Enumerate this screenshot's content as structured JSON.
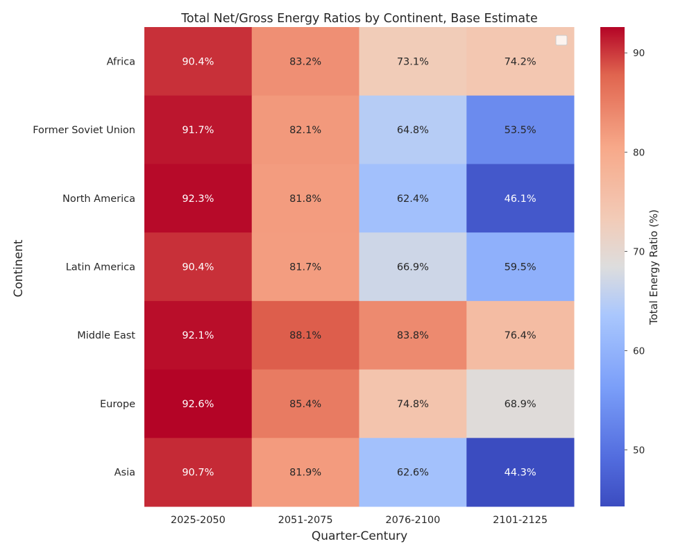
{
  "chart_data": {
    "type": "heatmap",
    "title": "Total Net/Gross Energy Ratios by Continent, Base Estimate",
    "xlabel": "Quarter-Century",
    "ylabel": "Continent",
    "x_categories": [
      "2025-2050",
      "2051-2075",
      "2076-2100",
      "2101-2125"
    ],
    "y_categories": [
      "Africa",
      "Former Soviet Union",
      "North America",
      "Latin America",
      "Middle East",
      "Europe",
      "Asia"
    ],
    "values": [
      [
        90.4,
        83.2,
        73.1,
        74.2
      ],
      [
        91.7,
        82.1,
        64.8,
        53.5
      ],
      [
        92.3,
        81.8,
        62.4,
        46.1
      ],
      [
        90.4,
        81.7,
        66.9,
        59.5
      ],
      [
        92.1,
        88.1,
        83.8,
        76.4
      ],
      [
        92.6,
        85.4,
        74.8,
        68.9
      ],
      [
        90.7,
        81.9,
        62.6,
        44.3
      ]
    ],
    "value_format": "percent_1dp",
    "colormap": "coolwarm",
    "colorbar": {
      "label": "Total Energy Ratio (%)",
      "range": [
        44.3,
        92.6
      ],
      "ticks": [
        50,
        60,
        70,
        80,
        90
      ]
    },
    "legend": {
      "placement": "upper right",
      "entries": []
    },
    "grid": false
  }
}
